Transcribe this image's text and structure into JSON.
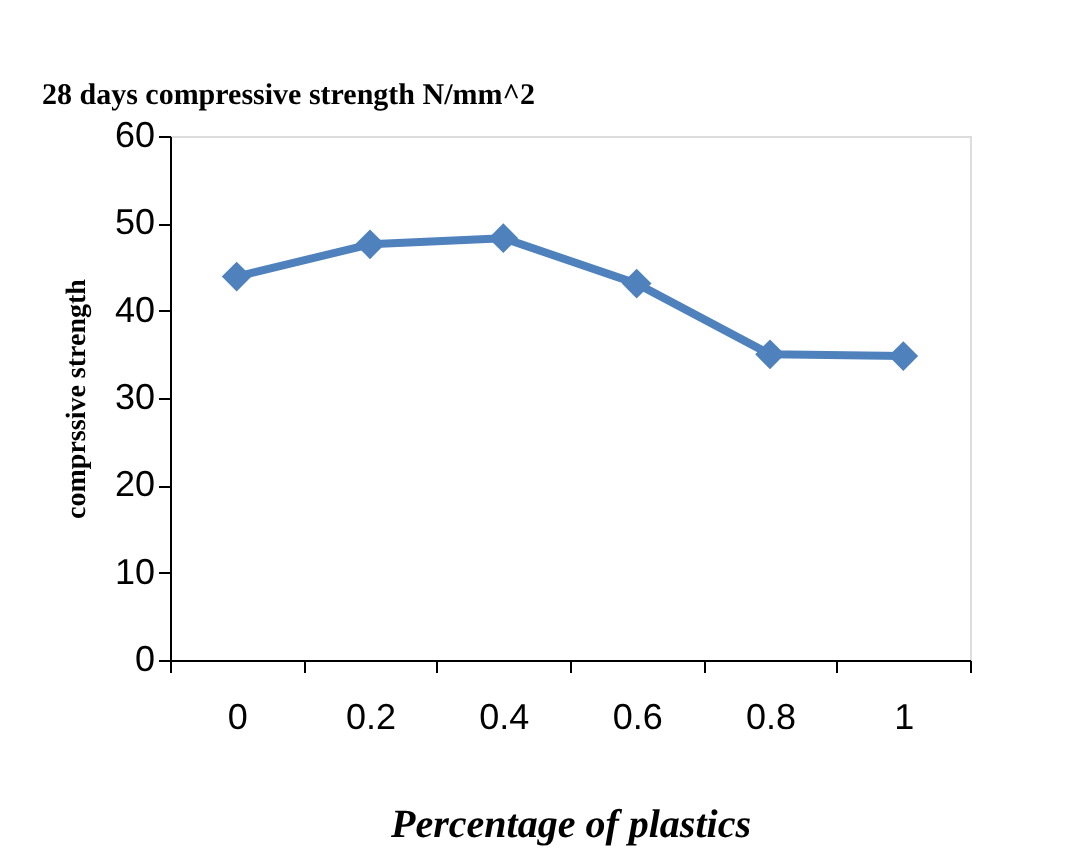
{
  "chart_data": {
    "type": "line",
    "title": "28 days compressive strength N/mm^2",
    "xlabel": "Percentage of plastics",
    "ylabel": "comprssive strength",
    "categories": [
      "0",
      "0.2",
      "0.4",
      "0.6",
      "0.8",
      "1"
    ],
    "series": [
      {
        "color": "#4f81bd",
        "values": [
          43.9,
          47.6,
          48.3,
          43.1,
          35.0,
          34.8
        ]
      }
    ],
    "ylim": [
      0,
      60
    ],
    "yticks": [
      0,
      10,
      20,
      30,
      40,
      50,
      60
    ],
    "grid": false,
    "marker": "diamond",
    "line_style": "solid"
  }
}
